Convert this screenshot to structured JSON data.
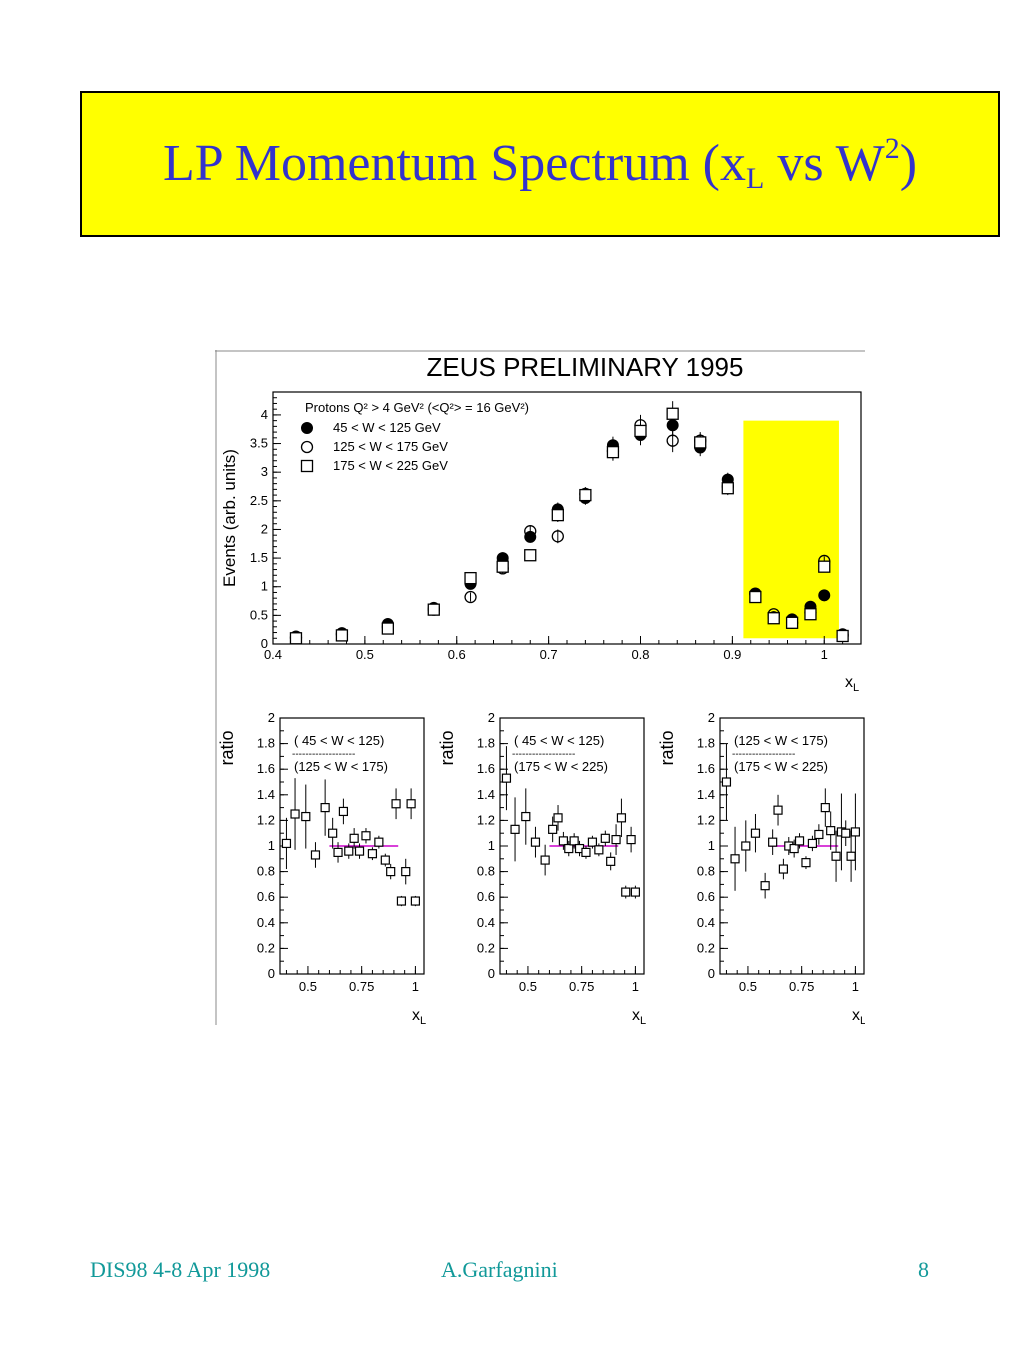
{
  "slide": {
    "title_main": "LP Momentum Spectrum (",
    "title_x": "x",
    "title_x_sub": "L",
    "title_vs": " vs W",
    "title_w_sup": "2",
    "title_close": ")"
  },
  "footer": {
    "left": "DIS98 4-8 Apr 1998",
    "center": "A.Garfagnini",
    "right": "8"
  },
  "colors": {
    "title_text": "#3333cc",
    "title_bg": "#ffff00",
    "footer_text": "#119999",
    "highlight": "#ffff00",
    "ratio_line": "#cc00cc"
  },
  "chart_data": [
    {
      "type": "scatter",
      "title": "ZEUS PRELIMINARY 1995",
      "xlabel": "x",
      "xlabel_sub": "L",
      "ylabel": "Events (arb. units)",
      "xlim": [
        0.4,
        1.04
      ],
      "ylim": [
        0,
        4.4
      ],
      "xticks": [
        0.4,
        0.5,
        0.6,
        0.7,
        0.8,
        0.9,
        1
      ],
      "yticks": [
        0,
        0.5,
        1,
        1.5,
        2,
        2.5,
        3,
        3.5,
        4
      ],
      "legend_title": "Protons Q² > 4 GeV²  (<Q²> = 16 GeV²)",
      "highlight_x": [
        0.912,
        1.016
      ],
      "highlight_y": [
        0.1,
        3.9
      ],
      "series": [
        {
          "name": "45 < W < 125 GeV",
          "marker": "filled-circle",
          "x": [
            0.425,
            0.475,
            0.525,
            0.575,
            0.615,
            0.65,
            0.68,
            0.71,
            0.74,
            0.77,
            0.8,
            0.835,
            0.865,
            0.895,
            0.925,
            0.945,
            0.965,
            0.985,
            1.0,
            1.02
          ],
          "y": [
            0.13,
            0.19,
            0.35,
            0.63,
            1.05,
            1.5,
            1.87,
            2.35,
            2.55,
            3.47,
            3.65,
            3.82,
            3.43,
            2.87,
            0.87,
            0.47,
            0.43,
            0.65,
            0.85,
            0.17
          ],
          "err": [
            0.05,
            0.05,
            0.07,
            0.08,
            0.08,
            0.1,
            0.1,
            0.12,
            0.12,
            0.15,
            0.18,
            0.2,
            0.15,
            0.12,
            0.06,
            0.05,
            0.05,
            0.05,
            0.05,
            0.04
          ]
        },
        {
          "name": "125 < W < 175 GeV",
          "marker": "open-circle",
          "x": [
            0.425,
            0.475,
            0.525,
            0.575,
            0.615,
            0.65,
            0.68,
            0.71,
            0.74,
            0.77,
            0.8,
            0.835,
            0.865,
            0.895,
            0.925,
            0.945,
            0.965,
            0.985,
            1.0,
            1.02
          ],
          "y": [
            0.11,
            0.17,
            0.3,
            0.6,
            0.82,
            1.32,
            1.97,
            1.88,
            2.62,
            3.37,
            3.82,
            3.55,
            3.55,
            2.75,
            0.88,
            0.52,
            0.37,
            0.55,
            1.45,
            0.15
          ],
          "err": [
            0.05,
            0.05,
            0.07,
            0.08,
            0.08,
            0.1,
            0.1,
            0.12,
            0.12,
            0.15,
            0.18,
            0.2,
            0.15,
            0.12,
            0.06,
            0.05,
            0.05,
            0.05,
            0.08,
            0.04
          ]
        },
        {
          "name": "175 < W < 225 GeV",
          "marker": "open-square",
          "x": [
            0.425,
            0.475,
            0.525,
            0.575,
            0.615,
            0.65,
            0.68,
            0.71,
            0.74,
            0.77,
            0.8,
            0.835,
            0.865,
            0.895,
            0.925,
            0.945,
            0.965,
            0.985,
            1.0,
            1.02
          ],
          "y": [
            0.1,
            0.15,
            0.27,
            0.6,
            1.15,
            1.35,
            1.55,
            2.25,
            2.6,
            3.35,
            3.72,
            4.02,
            3.52,
            2.72,
            0.82,
            0.45,
            0.37,
            0.52,
            1.35,
            0.14
          ],
          "err": [
            0.05,
            0.05,
            0.07,
            0.08,
            0.08,
            0.1,
            0.1,
            0.12,
            0.12,
            0.15,
            0.18,
            0.22,
            0.15,
            0.12,
            0.06,
            0.05,
            0.05,
            0.05,
            0.08,
            0.04
          ]
        }
      ]
    },
    {
      "type": "scatter",
      "ylabel": "ratio",
      "xlabel": "x",
      "xlabel_sub": "L",
      "numerator": "( 45 < W < 125)",
      "denominator": "(125 < W < 175)",
      "fraction_rule": "-------------------",
      "xlim": [
        0.37,
        1.04
      ],
      "ylim": [
        0,
        2
      ],
      "xticks": [
        0.5,
        0.75,
        1
      ],
      "yticks": [
        0,
        0.2,
        0.4,
        0.6,
        0.8,
        1,
        1.2,
        1.4,
        1.6,
        1.8,
        2
      ],
      "reference_line": {
        "y": 1,
        "x": [
          0.6,
          0.92
        ]
      },
      "x": [
        0.4,
        0.44,
        0.49,
        0.535,
        0.58,
        0.615,
        0.64,
        0.665,
        0.69,
        0.715,
        0.74,
        0.77,
        0.8,
        0.83,
        0.86,
        0.885,
        0.91,
        0.935,
        0.955,
        0.98,
        1.0
      ],
      "y": [
        1.02,
        1.25,
        1.23,
        0.93,
        1.3,
        1.1,
        0.95,
        1.27,
        0.96,
        1.06,
        0.96,
        1.08,
        0.94,
        1.03,
        0.89,
        0.8,
        1.33,
        0.57,
        0.8,
        1.33,
        0.57
      ],
      "err": [
        0.2,
        0.28,
        0.25,
        0.1,
        0.22,
        0.12,
        0.08,
        0.1,
        0.06,
        0.08,
        0.06,
        0.06,
        0.05,
        0.05,
        0.05,
        0.06,
        0.12,
        0.04,
        0.1,
        0.12,
        0.04
      ]
    },
    {
      "type": "scatter",
      "ylabel": "ratio",
      "xlabel": "x",
      "xlabel_sub": "L",
      "numerator": "( 45 < W < 125)",
      "denominator": "(175 < W < 225)",
      "fraction_rule": "-------------------",
      "xlim": [
        0.37,
        1.04
      ],
      "ylim": [
        0,
        2
      ],
      "xticks": [
        0.5,
        0.75,
        1
      ],
      "yticks": [
        0,
        0.2,
        0.4,
        0.6,
        0.8,
        1,
        1.2,
        1.4,
        1.6,
        1.8,
        2
      ],
      "reference_line": {
        "y": 1,
        "x": [
          0.6,
          0.92
        ]
      },
      "x": [
        0.4,
        0.44,
        0.49,
        0.535,
        0.58,
        0.615,
        0.64,
        0.665,
        0.69,
        0.715,
        0.74,
        0.77,
        0.8,
        0.83,
        0.86,
        0.885,
        0.91,
        0.935,
        0.955,
        0.98,
        1.0
      ],
      "y": [
        1.53,
        1.13,
        1.23,
        1.03,
        0.89,
        1.13,
        1.22,
        1.04,
        0.98,
        1.04,
        0.98,
        0.95,
        1.03,
        0.97,
        1.06,
        0.88,
        1.05,
        1.22,
        0.64,
        1.05,
        0.64
      ],
      "err": [
        0.25,
        0.25,
        0.22,
        0.12,
        0.12,
        0.1,
        0.1,
        0.07,
        0.06,
        0.06,
        0.06,
        0.05,
        0.05,
        0.05,
        0.06,
        0.07,
        0.12,
        0.15,
        0.05,
        0.1,
        0.05
      ]
    },
    {
      "type": "scatter",
      "ylabel": "ratio",
      "xlabel": "x",
      "xlabel_sub": "L",
      "numerator": "(125 < W < 175)",
      "denominator": "(175 < W < 225)",
      "fraction_rule": "-------------------",
      "xlim": [
        0.37,
        1.04
      ],
      "ylim": [
        0,
        2
      ],
      "xticks": [
        0.5,
        0.75,
        1
      ],
      "yticks": [
        0,
        0.2,
        0.4,
        0.6,
        0.8,
        1,
        1.2,
        1.4,
        1.6,
        1.8,
        2
      ],
      "reference_line": {
        "y": 1,
        "x": [
          0.6,
          0.92
        ]
      },
      "x": [
        0.4,
        0.44,
        0.49,
        0.535,
        0.58,
        0.615,
        0.64,
        0.665,
        0.69,
        0.715,
        0.74,
        0.77,
        0.8,
        0.83,
        0.86,
        0.885,
        0.91,
        0.935,
        0.955,
        0.98,
        1.0
      ],
      "y": [
        1.5,
        0.9,
        1.0,
        1.1,
        0.69,
        1.03,
        1.28,
        0.82,
        1.0,
        0.98,
        1.04,
        0.87,
        1.02,
        1.09,
        1.3,
        1.12,
        0.92,
        1.11,
        1.1,
        0.92,
        1.11
      ],
      "err": [
        0.3,
        0.25,
        0.2,
        0.15,
        0.1,
        0.1,
        0.12,
        0.08,
        0.07,
        0.07,
        0.06,
        0.05,
        0.06,
        0.08,
        0.15,
        0.15,
        0.2,
        0.3,
        0.1,
        0.2,
        0.3
      ]
    }
  ]
}
